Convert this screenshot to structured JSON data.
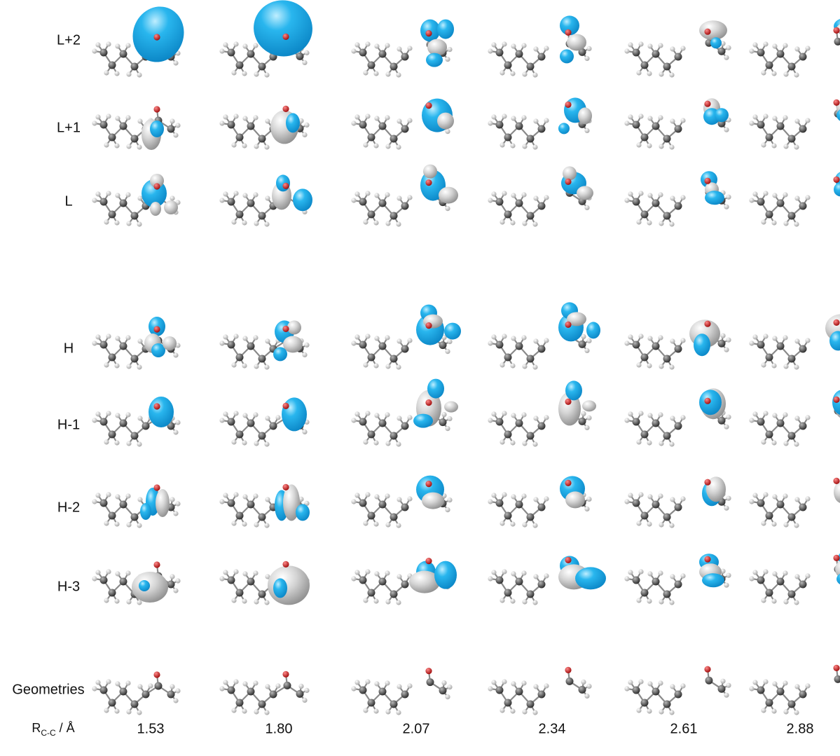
{
  "rows": [
    {
      "label": "L+2"
    },
    {
      "label": "L+1"
    },
    {
      "label": "L"
    },
    {
      "label": "H"
    },
    {
      "label": "H-1"
    },
    {
      "label": "H-2"
    },
    {
      "label": "H-3"
    },
    {
      "label": "Geometries"
    }
  ],
  "axis": {
    "main": "R",
    "sub": "C-C",
    "unit": " / Å"
  },
  "distances": [
    "1.53",
    "1.80",
    "2.07",
    "2.34",
    "2.61",
    "2.88"
  ],
  "colors": {
    "lobe_positive": "#29b6ee",
    "lobe_negative": "#d4d4d4",
    "carbon": "#555555",
    "hydrogen": "#dcdcdc",
    "oxygen": "#cc1f1f",
    "bond": "#8a8a8a"
  }
}
